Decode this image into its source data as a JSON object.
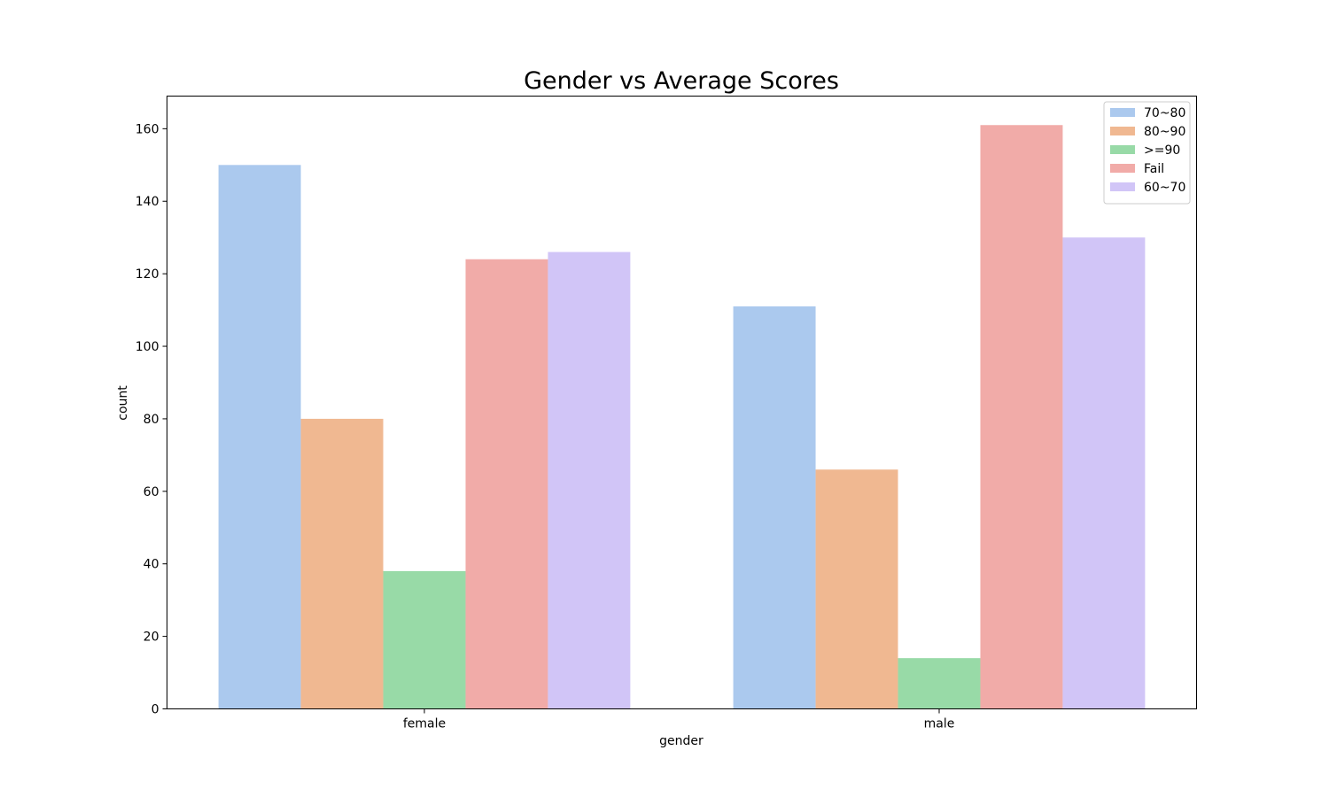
{
  "chart_data": {
    "type": "bar",
    "title": "Gender vs Average Scores",
    "xlabel": "gender",
    "ylabel": "count",
    "categories": [
      "female",
      "male"
    ],
    "ylim": [
      0,
      169
    ],
    "yticks": [
      0,
      20,
      40,
      60,
      80,
      100,
      120,
      140,
      160
    ],
    "grid": false,
    "legend_position": "top-right",
    "series": [
      {
        "name": "70~80",
        "color": "#abc9ee",
        "values": [
          150,
          111
        ]
      },
      {
        "name": "80~90",
        "color": "#f0b891",
        "values": [
          80,
          66
        ]
      },
      {
        "name": ">=90",
        "color": "#98daa7",
        "values": [
          38,
          14
        ]
      },
      {
        "name": "Fail",
        "color": "#f1aba8",
        "values": [
          124,
          161
        ]
      },
      {
        "name": "60~70",
        "color": "#d1c5f7",
        "values": [
          126,
          130
        ]
      }
    ]
  }
}
